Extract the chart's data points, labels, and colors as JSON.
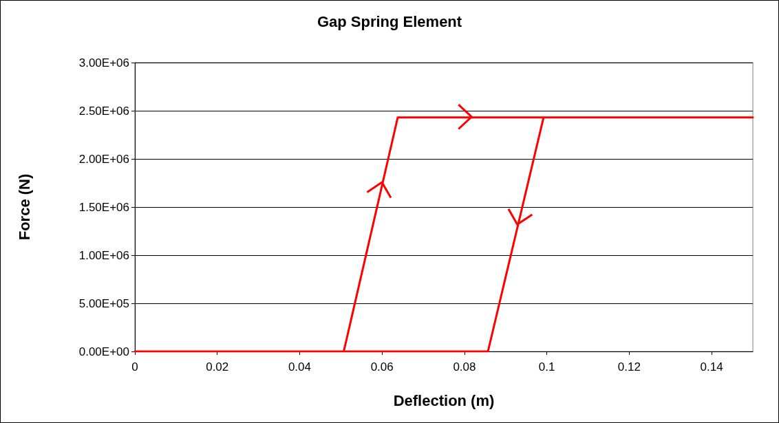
{
  "chart_data": {
    "type": "line",
    "title": "Gap Spring Element",
    "xlabel": "Deflection (m)",
    "ylabel": "Force (N)",
    "x": [
      0,
      0.0507,
      0.0638,
      0.15,
      0.0992,
      0.0857,
      0.0507
    ],
    "series": [
      {
        "color": "#ff0000",
        "values": [
          0,
          0,
          2430000,
          2430000,
          2430000,
          0,
          0
        ]
      }
    ],
    "xlim": [
      0,
      0.15
    ],
    "xticks": [
      0,
      0.02,
      0.04,
      0.06,
      0.08,
      0.1,
      0.12,
      0.14
    ],
    "ylim": [
      0,
      3000000
    ],
    "yticks": [
      {
        "value": 0,
        "label": "0.00E+00"
      },
      {
        "value": 500000,
        "label": "5.00E+05"
      },
      {
        "value": 1000000,
        "label": "1.00E+06"
      },
      {
        "value": 1500000,
        "label": "1.50E+06"
      },
      {
        "value": 2000000,
        "label": "2.00E+06"
      },
      {
        "value": 2500000,
        "label": "2.50E+06"
      },
      {
        "value": 3000000,
        "label": "3.00E+06"
      }
    ],
    "grid": "y",
    "marker": "none",
    "line_style": "solid"
  }
}
